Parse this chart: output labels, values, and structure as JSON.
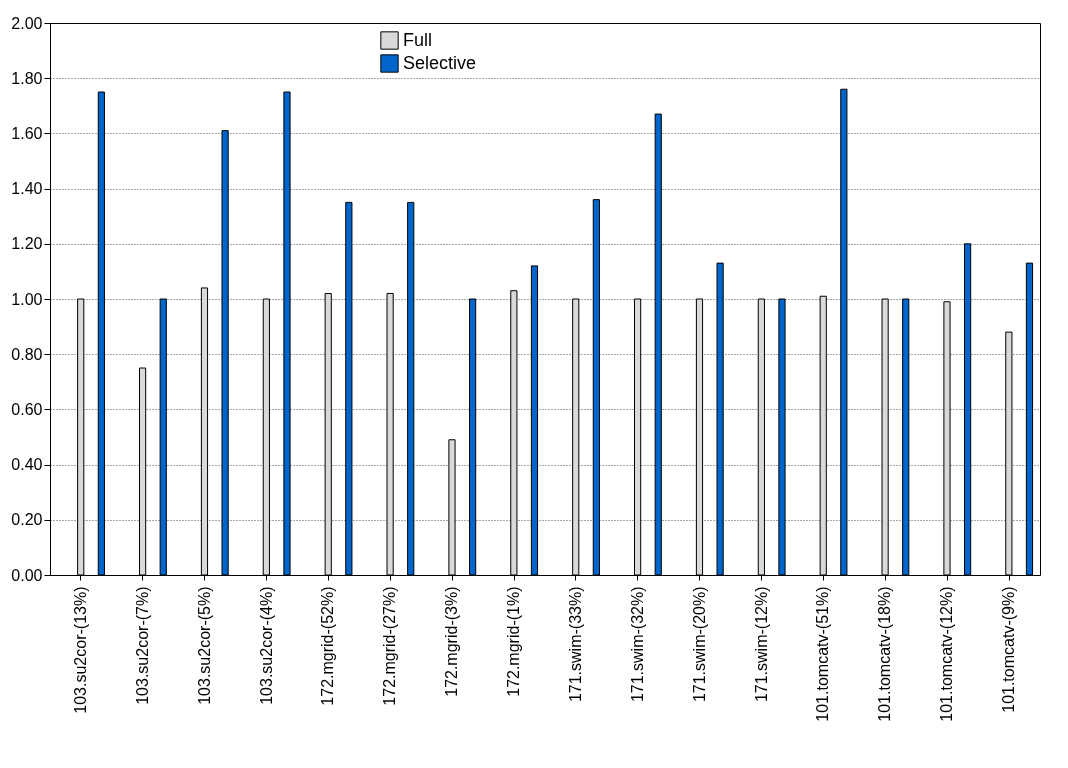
{
  "chart_data": {
    "type": "bar",
    "categories": [
      "103.su2cor-(13%)",
      "103.su2cor-(7%)",
      "103.su2cor-(5%)",
      "103.su2cor-(4%)",
      "172.mgrid-(52%)",
      "172.mgrid-(27%)",
      "172.mgrid-(3%)",
      "172.mgrid-(1%)",
      "171.swim-(33%)",
      "171.swim-(32%)",
      "171.swim-(20%)",
      "171.swim-(12%)",
      "101.tomcatv-(51%)",
      "101.tomcatv-(18%)",
      "101.tomcatv-(12%)",
      "101.tomcatv-(9%)"
    ],
    "series": [
      {
        "name": "Full",
        "color": "#d9d9d9",
        "values": [
          1.0,
          0.75,
          1.04,
          1.0,
          1.02,
          1.02,
          0.49,
          1.03,
          1.0,
          1.0,
          1.0,
          1.0,
          1.01,
          1.0,
          0.99,
          0.88
        ]
      },
      {
        "name": "Selective",
        "color": "#0066cc",
        "values": [
          1.75,
          1.0,
          1.61,
          1.75,
          1.35,
          1.35,
          1.0,
          1.12,
          1.36,
          1.67,
          1.13,
          1.0,
          1.76,
          1.0,
          1.2,
          1.13
        ]
      }
    ],
    "ylim": [
      0,
      2
    ],
    "yticks": [
      {
        "value": 0,
        "label": "0.00"
      },
      {
        "value": 0.2,
        "label": "0.20"
      },
      {
        "value": 0.4,
        "label": "0.40"
      },
      {
        "value": 0.6,
        "label": "0.60"
      },
      {
        "value": 0.8,
        "label": "0.80"
      },
      {
        "value": 1,
        "label": "1.00"
      },
      {
        "value": 1.2,
        "label": "1.20"
      },
      {
        "value": 1.4,
        "label": "1.40"
      },
      {
        "value": 1.6,
        "label": "1.60"
      },
      {
        "value": 1.8,
        "label": "1.80"
      },
      {
        "value": 2,
        "label": "2.00"
      }
    ],
    "grid": "y",
    "legend": "top"
  }
}
